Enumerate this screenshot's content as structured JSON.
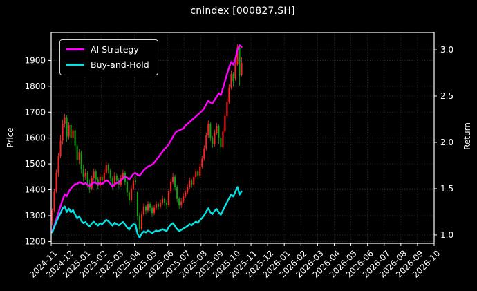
{
  "chart_data": {
    "type": "candlestick",
    "title": "cnindex [000827.SH]",
    "ylabel_left": "Price",
    "ylabel_right": "Return",
    "grid": true,
    "legend_position": "upper-left",
    "background_color": "#000000",
    "text_color": "#ffffff",
    "grid_color": "#3c3c3c",
    "candle_up_color": "#ff2222",
    "candle_down_color": "#12a112",
    "x_tick_labels": [
      "2024-11",
      "2024-12",
      "2025-01",
      "2025-02",
      "2025-03",
      "2025-04",
      "2025-05",
      "2025-06",
      "2025-07",
      "2025-08",
      "2025-09",
      "2025-10",
      "2025-11",
      "2025-12",
      "2026-01",
      "2026-02",
      "2026-03",
      "2026-04",
      "2026-05",
      "2026-06",
      "2026-07",
      "2026-08",
      "2026-09",
      "2026-10"
    ],
    "price_ticks": [
      1200,
      1300,
      1400,
      1500,
      1600,
      1700,
      1800,
      1900
    ],
    "return_ticks": [
      1.0,
      1.5,
      2.0,
      2.5,
      3.0
    ],
    "price_ylim": [
      1193,
      2008
    ],
    "return_ylim": [
      0.91,
      3.187
    ],
    "candles_per_month": 8,
    "candles_ohlc": [
      [
        1280,
        1328,
        1262,
        1320
      ],
      [
        1320,
        1402,
        1312,
        1395
      ],
      [
        1395,
        1478,
        1388,
        1465
      ],
      [
        1465,
        1542,
        1450,
        1530
      ],
      [
        1530,
        1612,
        1522,
        1590
      ],
      [
        1590,
        1672,
        1575,
        1655
      ],
      [
        1655,
        1693,
        1640,
        1680
      ],
      [
        1680,
        1688,
        1585,
        1605
      ],
      [
        1605,
        1662,
        1595,
        1650
      ],
      [
        1650,
        1658,
        1572,
        1600
      ],
      [
        1600,
        1645,
        1588,
        1630
      ],
      [
        1630,
        1638,
        1552,
        1570
      ],
      [
        1570,
        1578,
        1495,
        1515
      ],
      [
        1515,
        1557,
        1500,
        1545
      ],
      [
        1545,
        1552,
        1462,
        1480
      ],
      [
        1480,
        1498,
        1432,
        1450
      ],
      [
        1450,
        1482,
        1438,
        1465
      ],
      [
        1465,
        1472,
        1408,
        1425
      ],
      [
        1425,
        1440,
        1388,
        1405
      ],
      [
        1405,
        1455,
        1398,
        1445
      ],
      [
        1445,
        1482,
        1435,
        1470
      ],
      [
        1470,
        1478,
        1425,
        1440
      ],
      [
        1440,
        1450,
        1402,
        1415
      ],
      [
        1415,
        1462,
        1408,
        1450
      ],
      [
        1450,
        1458,
        1420,
        1435
      ],
      [
        1435,
        1478,
        1428,
        1465
      ],
      [
        1465,
        1508,
        1458,
        1495
      ],
      [
        1495,
        1502,
        1462,
        1475
      ],
      [
        1475,
        1482,
        1432,
        1445
      ],
      [
        1445,
        1452,
        1400,
        1415
      ],
      [
        1415,
        1468,
        1410,
        1455
      ],
      [
        1455,
        1462,
        1422,
        1435
      ],
      [
        1435,
        1445,
        1405,
        1420
      ],
      [
        1420,
        1458,
        1412,
        1445
      ],
      [
        1445,
        1478,
        1438,
        1465
      ],
      [
        1465,
        1472,
        1418,
        1430
      ],
      [
        1430,
        1438,
        1375,
        1390
      ],
      [
        1390,
        1398,
        1342,
        1360
      ],
      [
        1360,
        1418,
        1352,
        1405
      ],
      [
        1405,
        1448,
        1398,
        1435
      ],
      [
        1435,
        1452,
        1420,
        1430
      ],
      [
        1390,
        1395,
        1282,
        1300
      ],
      [
        1300,
        1312,
        1235,
        1248
      ],
      [
        1248,
        1318,
        1242,
        1305
      ],
      [
        1305,
        1348,
        1298,
        1335
      ],
      [
        1335,
        1342,
        1305,
        1320
      ],
      [
        1320,
        1355,
        1312,
        1345
      ],
      [
        1345,
        1352,
        1318,
        1330
      ],
      [
        1330,
        1338,
        1295,
        1310
      ],
      [
        1310,
        1342,
        1302,
        1330
      ],
      [
        1330,
        1355,
        1322,
        1345
      ],
      [
        1345,
        1352,
        1322,
        1335
      ],
      [
        1335,
        1362,
        1328,
        1350
      ],
      [
        1350,
        1378,
        1342,
        1365
      ],
      [
        1365,
        1372,
        1338,
        1350
      ],
      [
        1350,
        1358,
        1325,
        1340
      ],
      [
        1340,
        1402,
        1332,
        1395
      ],
      [
        1395,
        1442,
        1388,
        1430
      ],
      [
        1430,
        1465,
        1422,
        1450
      ],
      [
        1450,
        1458,
        1398,
        1410
      ],
      [
        1410,
        1418,
        1352,
        1365
      ],
      [
        1365,
        1372,
        1325,
        1340
      ],
      [
        1340,
        1368,
        1330,
        1355
      ],
      [
        1355,
        1388,
        1348,
        1375
      ],
      [
        1375,
        1398,
        1368,
        1390
      ],
      [
        1390,
        1422,
        1382,
        1410
      ],
      [
        1410,
        1447,
        1402,
        1435
      ],
      [
        1435,
        1442,
        1408,
        1420
      ],
      [
        1420,
        1458,
        1412,
        1450
      ],
      [
        1450,
        1482,
        1442,
        1470
      ],
      [
        1470,
        1478,
        1440,
        1455
      ],
      [
        1455,
        1502,
        1448,
        1490
      ],
      [
        1490,
        1532,
        1482,
        1520
      ],
      [
        1520,
        1572,
        1512,
        1560
      ],
      [
        1560,
        1622,
        1552,
        1610
      ],
      [
        1610,
        1668,
        1602,
        1655
      ],
      [
        1655,
        1662,
        1588,
        1600
      ],
      [
        1600,
        1608,
        1562,
        1575
      ],
      [
        1575,
        1632,
        1568,
        1620
      ],
      [
        1620,
        1658,
        1612,
        1645
      ],
      [
        1645,
        1652,
        1578,
        1600
      ],
      [
        1600,
        1608,
        1545,
        1565
      ],
      [
        1565,
        1638,
        1558,
        1625
      ],
      [
        1625,
        1698,
        1618,
        1685
      ],
      [
        1685,
        1752,
        1678,
        1740
      ],
      [
        1740,
        1808,
        1732,
        1795
      ],
      [
        1795,
        1862,
        1788,
        1848
      ],
      [
        1848,
        1855,
        1798,
        1820
      ],
      [
        1830,
        1898,
        1822,
        1885
      ],
      [
        1885,
        1962,
        1878,
        1950
      ],
      [
        1950,
        1958,
        1802,
        1845
      ],
      [
        1845,
        1912,
        1838,
        1890
      ]
    ],
    "series": [
      {
        "name": "AI Strategy",
        "color": "#ff00ff",
        "axis": "return",
        "values": [
          1.04,
          1.1,
          1.17,
          1.24,
          1.31,
          1.38,
          1.44,
          1.42,
          1.47,
          1.5,
          1.53,
          1.55,
          1.55,
          1.57,
          1.56,
          1.55,
          1.56,
          1.54,
          1.53,
          1.55,
          1.57,
          1.56,
          1.55,
          1.56,
          1.55,
          1.57,
          1.59,
          1.58,
          1.55,
          1.52,
          1.55,
          1.56,
          1.57,
          1.59,
          1.61,
          1.63,
          1.62,
          1.6,
          1.63,
          1.66,
          1.67,
          1.65,
          1.64,
          1.67,
          1.7,
          1.72,
          1.74,
          1.75,
          1.76,
          1.78,
          1.81,
          1.84,
          1.87,
          1.9,
          1.93,
          1.95,
          1.98,
          2.02,
          2.06,
          2.1,
          2.12,
          2.13,
          2.14,
          2.15,
          2.18,
          2.2,
          2.22,
          2.24,
          2.26,
          2.28,
          2.3,
          2.32,
          2.34,
          2.37,
          2.41,
          2.45,
          2.43,
          2.42,
          2.46,
          2.49,
          2.53,
          2.51,
          2.58,
          2.66,
          2.74,
          2.81,
          2.87,
          2.84,
          2.9,
          3.0,
          3.05,
          3.03
        ]
      },
      {
        "name": "Buy-and-Hold",
        "color": "#00e5e5",
        "axis": "return",
        "values": [
          1.027,
          1.086,
          1.14,
          1.191,
          1.237,
          1.288,
          1.307,
          1.249,
          1.284,
          1.245,
          1.268,
          1.222,
          1.179,
          1.202,
          1.152,
          1.128,
          1.14,
          1.109,
          1.093,
          1.124,
          1.144,
          1.121,
          1.101,
          1.128,
          1.117,
          1.14,
          1.163,
          1.148,
          1.124,
          1.101,
          1.132,
          1.117,
          1.105,
          1.124,
          1.14,
          1.113,
          1.082,
          1.058,
          1.093,
          1.117,
          1.113,
          1.012,
          0.971,
          1.016,
          1.039,
          1.027,
          1.047,
          1.035,
          1.019,
          1.035,
          1.047,
          1.039,
          1.051,
          1.062,
          1.051,
          1.043,
          1.086,
          1.113,
          1.128,
          1.097,
          1.062,
          1.043,
          1.054,
          1.07,
          1.082,
          1.097,
          1.117,
          1.105,
          1.128,
          1.144,
          1.132,
          1.16,
          1.183,
          1.214,
          1.253,
          1.288,
          1.245,
          1.226,
          1.261,
          1.28,
          1.245,
          1.218,
          1.265,
          1.311,
          1.354,
          1.397,
          1.438,
          1.416,
          1.467,
          1.518,
          1.436,
          1.471
        ]
      }
    ]
  }
}
